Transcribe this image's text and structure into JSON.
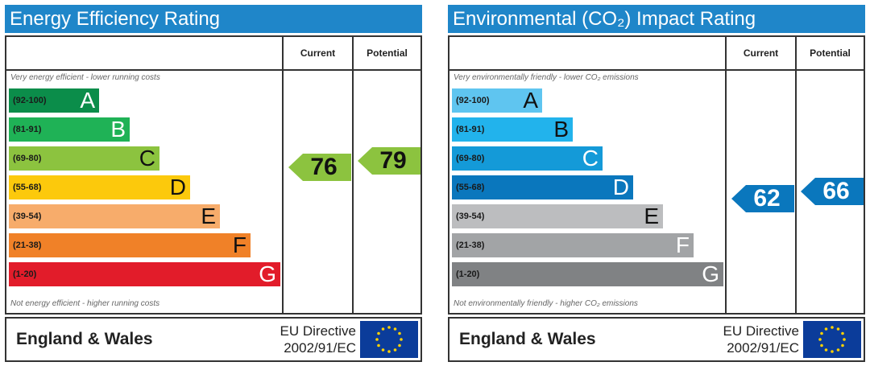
{
  "chart_data": [
    {
      "type": "bar",
      "title": "Energy Efficiency Rating",
      "columns": [
        "Current",
        "Potential"
      ],
      "top_caption": "Very energy efficient - lower running costs",
      "bottom_caption": "Not energy efficient - higher running costs",
      "categories": [
        "A",
        "B",
        "C",
        "D",
        "E",
        "F",
        "G"
      ],
      "ranges": [
        "(92-100)",
        "(81-91)",
        "(69-80)",
        "(55-68)",
        "(39-54)",
        "(21-38)",
        "(1-20)"
      ],
      "colors": [
        "#0b8d4a",
        "#1fb256",
        "#8cc33f",
        "#fcc90c",
        "#f7ac6b",
        "#f08128",
        "#e21c2a"
      ],
      "letter_colors": [
        "#ffffff",
        "#ffffff",
        "#111111",
        "#111111",
        "#111111",
        "#111111",
        "#ffffff"
      ],
      "current": 76,
      "potential": 79,
      "current_color": "#8cc33f",
      "potential_color": "#8cc33f",
      "value_text_color": "#111111",
      "footer": {
        "region": "England & Wales",
        "directive_line1": "EU Directive",
        "directive_line2": "2002/91/EC"
      }
    },
    {
      "type": "bar",
      "title": "Environmental (CO₂) Impact Rating",
      "columns": [
        "Current",
        "Potential"
      ],
      "top_caption": "Very environmentally friendly - lower CO₂ emissions",
      "bottom_caption": "Not environmentally friendly - higher CO₂ emissions",
      "categories": [
        "A",
        "B",
        "C",
        "D",
        "E",
        "F",
        "G"
      ],
      "ranges": [
        "(92-100)",
        "(81-91)",
        "(69-80)",
        "(55-68)",
        "(39-54)",
        "(21-38)",
        "(1-20)"
      ],
      "colors": [
        "#5fc5f0",
        "#22b3ec",
        "#149ad8",
        "#0a77bd",
        "#bcbdbf",
        "#a2a4a6",
        "#808284"
      ],
      "letter_colors": [
        "#111111",
        "#111111",
        "#ffffff",
        "#ffffff",
        "#111111",
        "#ffffff",
        "#ffffff"
      ],
      "current": 62,
      "potential": 66,
      "current_color": "#0a77bd",
      "potential_color": "#0a77bd",
      "value_text_color": "#ffffff",
      "footer": {
        "region": "England & Wales",
        "directive_line1": "EU Directive",
        "directive_line2": "2002/91/EC"
      }
    }
  ]
}
